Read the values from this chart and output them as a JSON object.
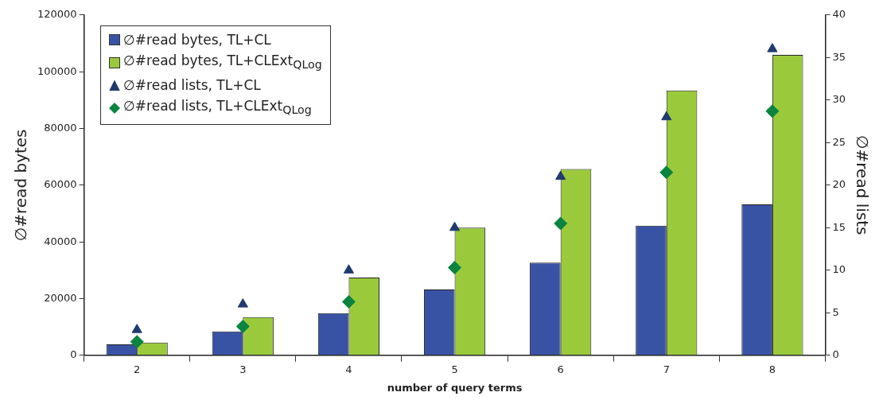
{
  "chart_data": {
    "type": "bar",
    "xlabel": "number of query terms",
    "ylabel": "∅#read bytes",
    "y2label": "∅#read lists",
    "categories": [
      "2",
      "3",
      "4",
      "5",
      "6",
      "7",
      "8"
    ],
    "series": [
      {
        "name": "∅#read bytes, TL+CL",
        "color": "#3953a4",
        "values": [
          3900,
          8400,
          14900,
          23200,
          32700,
          45700,
          53200
        ]
      },
      {
        "name": "∅#read bytes, TL+CLExt$_{QLog}$",
        "color": "#9aca3c",
        "values": [
          4500,
          13500,
          27400,
          45000,
          65700,
          93400,
          105900
        ]
      },
      {
        "name": "∅#read lists, TL+CL",
        "type": "scatter",
        "marker": "triangle",
        "axis": "y2",
        "color": "#1f3a6e",
        "values": [
          3,
          6,
          10,
          15,
          21,
          28,
          36
        ]
      },
      {
        "name": "∅#read lists, TL+CLExt$_{QLog}$",
        "type": "scatter",
        "marker": "diamond",
        "axis": "y2",
        "color": "#0b8440",
        "values": [
          1.6,
          3.4,
          6.3,
          10.3,
          15.5,
          21.5,
          28.7
        ]
      }
    ],
    "ylim": [
      0,
      120000
    ],
    "yticks": [
      0,
      20000,
      40000,
      60000,
      80000,
      100000,
      120000
    ],
    "y2lim": [
      0,
      40
    ],
    "y2ticks": [
      0,
      5,
      10,
      15,
      20,
      25,
      30,
      35,
      40
    ],
    "grid": false,
    "legend": "top left"
  }
}
